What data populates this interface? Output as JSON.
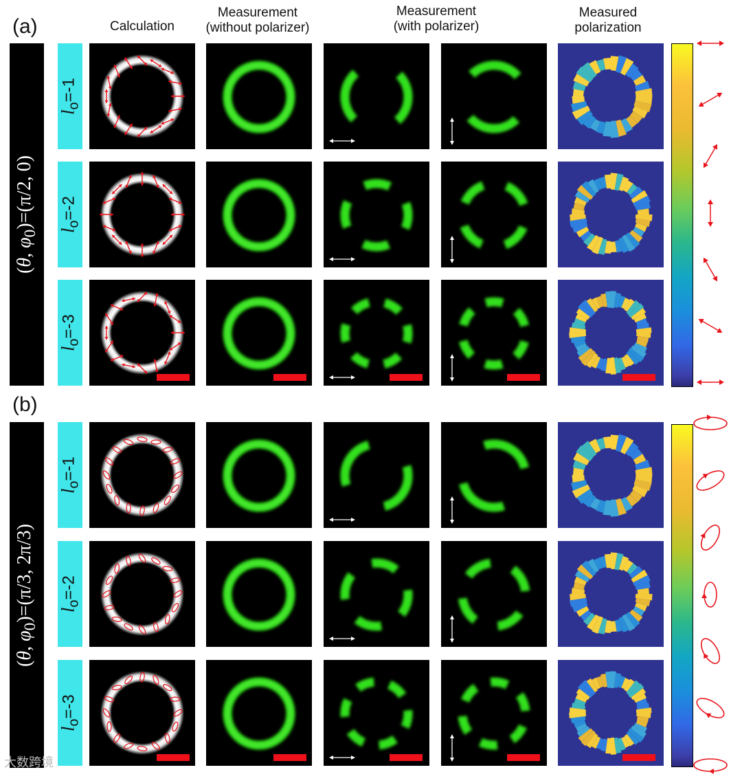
{
  "panels": [
    {
      "letter": "(a)",
      "side_label": "(θ, φ0)=(π/2, 0)",
      "rows": [
        {
          "label_prefix": "l",
          "label_sub": "o",
          "label_value": "=-1",
          "order": 1
        },
        {
          "label_prefix": "l",
          "label_sub": "o",
          "label_value": "=-2",
          "order": 2
        },
        {
          "label_prefix": "l",
          "label_sub": "o",
          "label_value": "=-3",
          "order": 3
        }
      ],
      "glyph_type": "linear"
    },
    {
      "letter": "(b)",
      "side_label": "(θ, φ0)=(π/3, 2π/3)",
      "rows": [
        {
          "label_prefix": "l",
          "label_sub": "o",
          "label_value": "=-1",
          "order": 1
        },
        {
          "label_prefix": "l",
          "label_sub": "o",
          "label_value": "=-2",
          "order": 2
        },
        {
          "label_prefix": "l",
          "label_sub": "o",
          "label_value": "=-3",
          "order": 3
        }
      ],
      "glyph_type": "ellipse"
    }
  ],
  "column_headers": {
    "calculation": "Calculation",
    "measurement_line1": "Measurement",
    "measurement_line2": "(without polarizer)",
    "measurement_pol_line1": "Measurement",
    "measurement_pol_line2": "(with polarizer)",
    "measured_pol_line1": "Measured",
    "measured_pol_line2": "polarization"
  },
  "polarizer_directions": [
    "horizontal",
    "vertical"
  ],
  "colorbar": {
    "colormap": "parula"
  },
  "colors": {
    "ring_green": "#33e01c",
    "arrow_red": "#e8141c",
    "tag_cyan": "#40e6ea",
    "polar_background": "#2e3391",
    "scale_bar": "#f0101a"
  },
  "watermark": "大数跨境"
}
